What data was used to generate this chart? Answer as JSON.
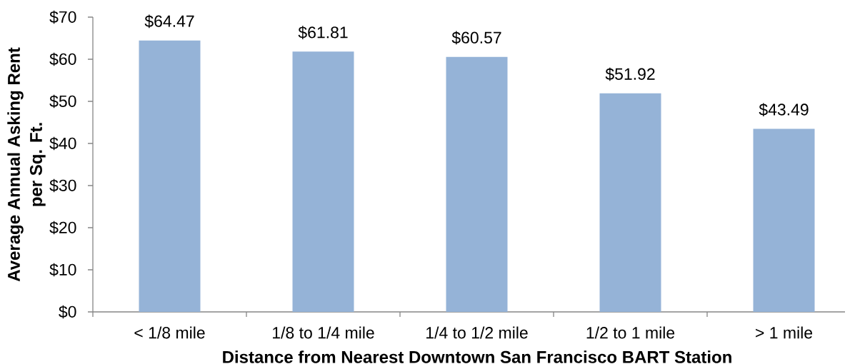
{
  "chart_data": {
    "type": "bar",
    "xlabel": "Distance from Nearest Downtown San Francisco BART Station",
    "ylabel": "Average Annual Asking Rent per Sq. Ft.",
    "categories": [
      "< 1/8 mile",
      "1/8 to 1/4 mile",
      "1/4 to 1/2 mile",
      "1/2 to 1 mile",
      "> 1 mile"
    ],
    "values": [
      64.47,
      61.81,
      60.57,
      51.92,
      43.49
    ],
    "value_labels": [
      "$64.47",
      "$61.81",
      "$60.57",
      "$51.92",
      "$43.49"
    ],
    "color": "#95b3d7",
    "ylim": [
      0,
      70
    ],
    "yticks": [
      {
        "value": 0,
        "label": "$0"
      },
      {
        "value": 10,
        "label": "$10"
      },
      {
        "value": 20,
        "label": "$20"
      },
      {
        "value": 30,
        "label": "$30"
      },
      {
        "value": 40,
        "label": "$40"
      },
      {
        "value": 50,
        "label": "$50"
      },
      {
        "value": 60,
        "label": "$60"
      },
      {
        "value": 70,
        "label": "$70"
      }
    ]
  }
}
